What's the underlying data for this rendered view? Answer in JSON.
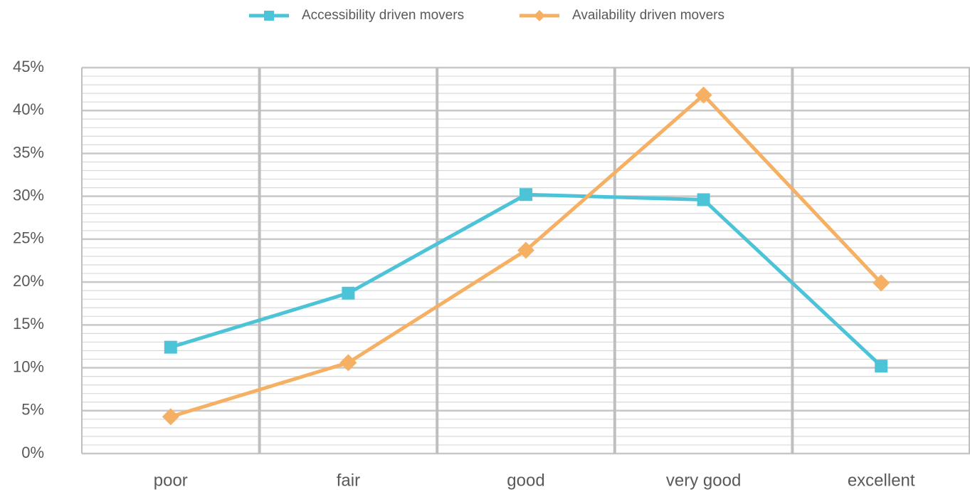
{
  "chart_data": {
    "type": "line",
    "categories": [
      "poor",
      "fair",
      "good",
      "very good",
      "excellent"
    ],
    "series": [
      {
        "name": "Accessibility driven movers",
        "color": "#4dc3d8",
        "marker": "square",
        "values": [
          12.4,
          18.7,
          30.2,
          29.6,
          10.2
        ]
      },
      {
        "name": "Availability driven movers",
        "color": "#f5b063",
        "marker": "diamond",
        "values": [
          4.3,
          10.6,
          23.7,
          41.8,
          19.9
        ]
      }
    ],
    "ylim": [
      0,
      45
    ],
    "yticks": [
      {
        "value": 0,
        "label": "0%"
      },
      {
        "value": 5,
        "label": "5%"
      },
      {
        "value": 10,
        "label": "10%"
      },
      {
        "value": 15,
        "label": "15%"
      },
      {
        "value": 20,
        "label": "20%"
      },
      {
        "value": 25,
        "label": "25%"
      },
      {
        "value": 30,
        "label": "30%"
      },
      {
        "value": 35,
        "label": "35%"
      },
      {
        "value": 40,
        "label": "40%"
      },
      {
        "value": 45,
        "label": "45%"
      }
    ],
    "grid": true,
    "minor_grid": true,
    "legend": "top"
  }
}
